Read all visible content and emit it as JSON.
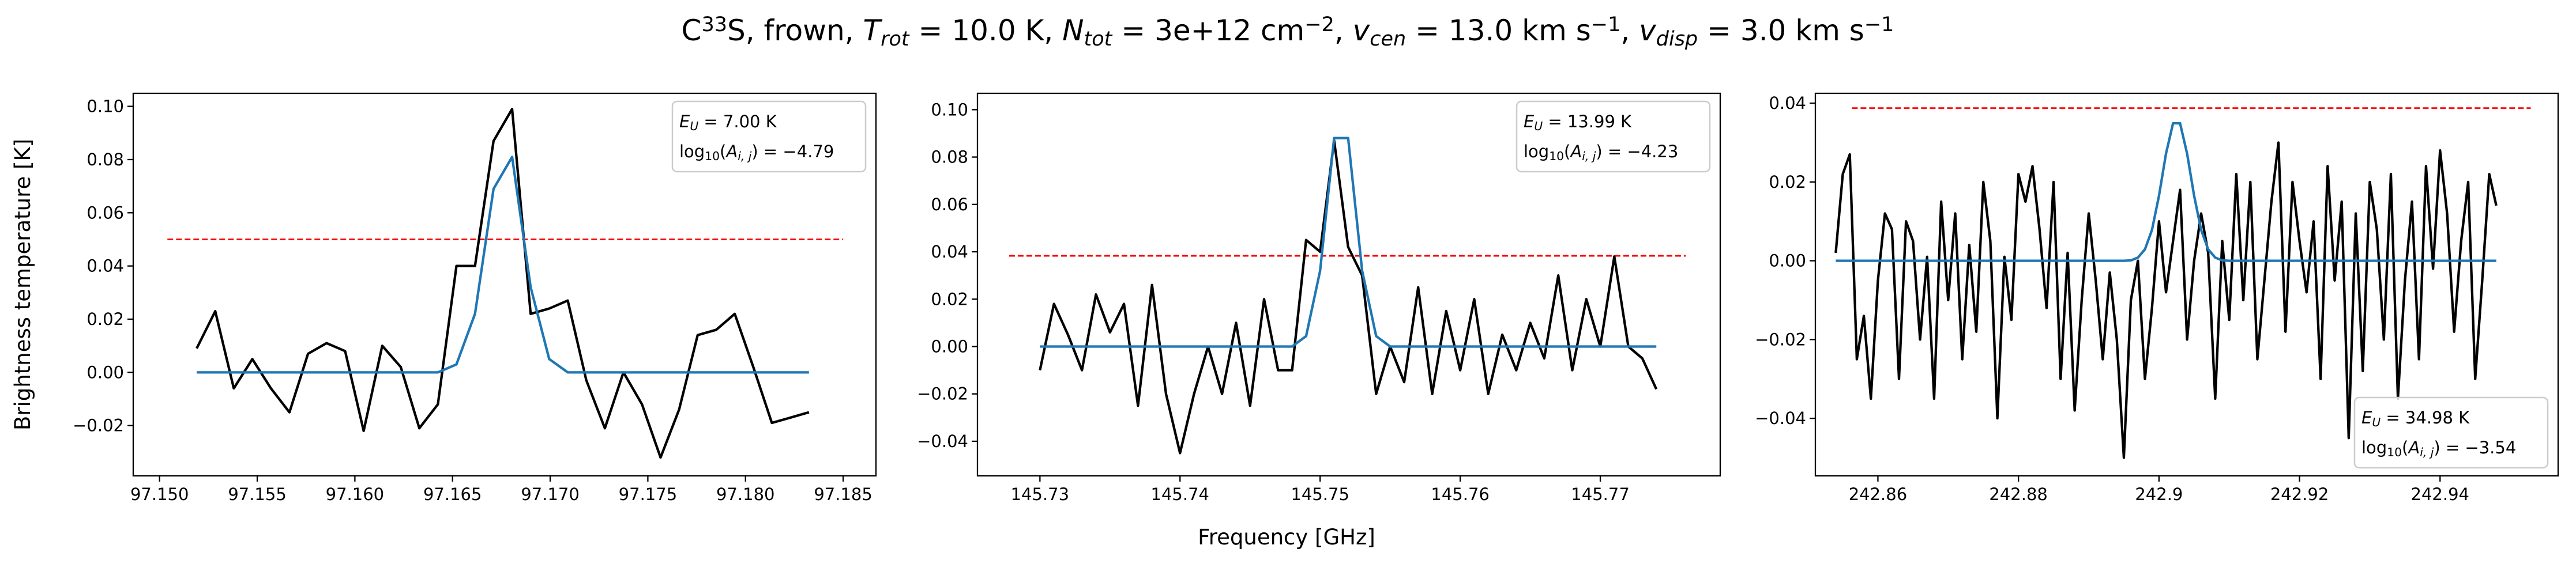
{
  "figure": {
    "title": [
      {
        "text": "C"
      },
      {
        "text": "33",
        "style": "sup"
      },
      {
        "text": "S, frown, "
      },
      {
        "text": "T",
        "style": "italic"
      },
      {
        "text": "rot",
        "style": "sub-italic"
      },
      {
        "text": " =  10.0 K, "
      },
      {
        "text": "N",
        "style": "italic"
      },
      {
        "text": "tot",
        "style": "sub-italic"
      },
      {
        "text": " =  3e+12 cm"
      },
      {
        "text": "−2",
        "style": "sup"
      },
      {
        "text": ", "
      },
      {
        "text": "v",
        "style": "italic"
      },
      {
        "text": "cen",
        "style": "sub-italic"
      },
      {
        "text": " =  13.0 km s"
      },
      {
        "text": "−1",
        "style": "sup"
      },
      {
        "text": ", "
      },
      {
        "text": "v",
        "style": "italic"
      },
      {
        "text": "disp",
        "style": "sub-italic"
      },
      {
        "text": " =  3.0 km s"
      },
      {
        "text": "−1",
        "style": "sup"
      }
    ],
    "xlabel": "Frequency [GHz]",
    "ylabel": "Brightness temperature [K]"
  },
  "chart_data": [
    {
      "type": "line",
      "x": [
        97.1519,
        97.15285,
        97.1538,
        97.15475,
        97.1557,
        97.15665,
        97.1576,
        97.15855,
        97.1595,
        97.16045,
        97.1614,
        97.16235,
        97.1633,
        97.16425,
        97.1652,
        97.16615,
        97.1671,
        97.16805,
        97.169,
        97.16995,
        97.1709,
        97.17185,
        97.1728,
        97.17375,
        97.1747,
        97.17565,
        97.1766,
        97.17755,
        97.1785,
        97.17945,
        97.1804,
        97.18135,
        97.1823,
        97.18325
      ],
      "series": [
        {
          "color": "#000000",
          "values": [
            0.009,
            0.023,
            -0.006,
            0.005,
            -0.006,
            -0.015,
            0.007,
            0.011,
            0.008,
            -0.022,
            0.01,
            0.002,
            -0.021,
            -0.012,
            0.04,
            0.04,
            0.087,
            0.099,
            0.022,
            0.024,
            0.027,
            -0.003,
            -0.021,
            0.0,
            -0.012,
            -0.032,
            -0.014,
            0.014,
            0.016,
            0.022,
            0.002,
            -0.019,
            -0.017,
            -0.015
          ]
        },
        {
          "color": "#1f77b4",
          "values": [
            0,
            0,
            0,
            0,
            0,
            0,
            0,
            0,
            0,
            0,
            0,
            0,
            0,
            0,
            0.003,
            0.022,
            0.069,
            0.081,
            0.032,
            0.005,
            0,
            0,
            0,
            0,
            0,
            0,
            0,
            0,
            0,
            0,
            0,
            0,
            0,
            0
          ]
        }
      ],
      "hline": {
        "y": 0.05,
        "xmin": 97.1504,
        "xmax": 97.185,
        "color": "#ff0000",
        "style": "dashed"
      },
      "xlim": [
        97.14865,
        97.18668
      ],
      "ylim": [
        -0.0389,
        0.1049
      ],
      "xticks": [
        {
          "value": 97.15,
          "label": "97.150"
        },
        {
          "value": 97.155,
          "label": "97.155"
        },
        {
          "value": 97.16,
          "label": "97.160"
        },
        {
          "value": 97.165,
          "label": "97.165"
        },
        {
          "value": 97.17,
          "label": "97.170"
        },
        {
          "value": 97.175,
          "label": "97.175"
        },
        {
          "value": 97.18,
          "label": "97.180"
        },
        {
          "value": 97.185,
          "label": "97.185"
        }
      ],
      "yticks": [
        {
          "value": -0.02,
          "label": "−0.02"
        },
        {
          "value": 0,
          "label": "0.00"
        },
        {
          "value": 0.02,
          "label": "0.02"
        },
        {
          "value": 0.04,
          "label": "0.04"
        },
        {
          "value": 0.06,
          "label": "0.06"
        },
        {
          "value": 0.08,
          "label": "0.08"
        },
        {
          "value": 0.1,
          "label": "0.10"
        }
      ],
      "annotation": {
        "loc": "upper right",
        "lines": [
          [
            {
              "text": "E",
              "style": "italic"
            },
            {
              "text": "U",
              "style": "sub-italic"
            },
            {
              "text": " = 7.00 K"
            }
          ],
          [
            {
              "text": "log"
            },
            {
              "text": "10",
              "style": "sub"
            },
            {
              "text": "("
            },
            {
              "text": "A",
              "style": "italic"
            },
            {
              "text": "i, j",
              "style": "sub-italic"
            },
            {
              "text": ") = −4.79"
            }
          ]
        ]
      }
    },
    {
      "type": "line",
      "x": [
        145.73,
        145.731,
        145.732,
        145.733,
        145.734,
        145.735,
        145.736,
        145.737,
        145.738,
        145.739,
        145.74,
        145.741,
        145.742,
        145.743,
        145.744,
        145.745,
        145.746,
        145.747,
        145.748,
        145.749,
        145.75,
        145.751,
        145.752,
        145.753,
        145.754,
        145.755,
        145.756,
        145.757,
        145.758,
        145.759,
        145.76,
        145.761,
        145.762,
        145.763,
        145.764,
        145.765,
        145.766,
        145.767,
        145.768,
        145.769,
        145.77,
        145.771,
        145.772,
        145.773,
        145.774
      ],
      "series": [
        {
          "color": "#000000",
          "values": [
            -0.01,
            0.018,
            0.005,
            -0.01,
            0.022,
            0.006,
            0.018,
            -0.025,
            0.026,
            -0.02,
            -0.045,
            -0.02,
            0.0,
            -0.02,
            0.01,
            -0.025,
            0.02,
            -0.01,
            -0.01,
            0.045,
            0.04,
            0.087,
            0.042,
            0.03,
            -0.02,
            0.0,
            -0.015,
            0.025,
            -0.02,
            0.015,
            -0.01,
            0.02,
            -0.02,
            0.005,
            -0.01,
            0.01,
            -0.005,
            0.03,
            -0.01,
            0.02,
            0.0,
            0.038,
            0.0,
            -0.005,
            -0.018
          ]
        },
        {
          "color": "#1f77b4",
          "values": [
            0,
            0,
            0,
            0,
            0,
            0,
            0,
            0,
            0,
            0,
            0,
            0,
            0,
            0,
            0,
            0,
            0,
            0,
            0,
            0.0044,
            0.032,
            0.088,
            0.088,
            0.032,
            0.0044,
            0,
            0,
            0,
            0,
            0,
            0,
            0,
            0,
            0,
            0,
            0,
            0,
            0,
            0,
            0,
            0,
            0,
            0,
            0,
            0
          ]
        }
      ],
      "hline": {
        "y": 0.0383,
        "xmin": 145.7278,
        "xmax": 145.7761,
        "color": "#ff0000",
        "style": "dashed"
      },
      "xlim": [
        145.72554,
        145.77856
      ],
      "ylim": [
        -0.0546,
        0.1069
      ],
      "xticks": [
        145.73,
        145.74,
        145.75,
        145.76,
        145.77
      ],
      "yticks": [
        {
          "value": -0.04,
          "label": "−0.04"
        },
        {
          "value": -0.02,
          "label": "−0.02"
        },
        {
          "value": 0,
          "label": "0.00"
        },
        {
          "value": 0.02,
          "label": "0.02"
        },
        {
          "value": 0.04,
          "label": "0.04"
        },
        {
          "value": 0.06,
          "label": "0.06"
        },
        {
          "value": 0.08,
          "label": "0.08"
        },
        {
          "value": 0.1,
          "label": "0.10"
        }
      ],
      "annotation": {
        "loc": "upper right",
        "lines": [
          [
            {
              "text": "E",
              "style": "italic"
            },
            {
              "text": "U",
              "style": "sub-italic"
            },
            {
              "text": " = 13.99 K"
            }
          ],
          [
            {
              "text": "log"
            },
            {
              "text": "10",
              "style": "sub"
            },
            {
              "text": "("
            },
            {
              "text": "A",
              "style": "italic"
            },
            {
              "text": "i, j",
              "style": "sub-italic"
            },
            {
              "text": ") = −4.23"
            }
          ]
        ]
      }
    },
    {
      "type": "line",
      "x": [
        242.854,
        242.855,
        242.856,
        242.857,
        242.858,
        242.859,
        242.86,
        242.861,
        242.862,
        242.863,
        242.864,
        242.865,
        242.866,
        242.867,
        242.868,
        242.869,
        242.87,
        242.871,
        242.872,
        242.873,
        242.874,
        242.875,
        242.876,
        242.877,
        242.878,
        242.879,
        242.88,
        242.881,
        242.882,
        242.883,
        242.884,
        242.885,
        242.886,
        242.887,
        242.888,
        242.889,
        242.89,
        242.891,
        242.892,
        242.893,
        242.894,
        242.895,
        242.896,
        242.897,
        242.898,
        242.899,
        242.9,
        242.901,
        242.902,
        242.903,
        242.904,
        242.905,
        242.906,
        242.907,
        242.908,
        242.909,
        242.91,
        242.911,
        242.912,
        242.913,
        242.914,
        242.915,
        242.916,
        242.917,
        242.918,
        242.919,
        242.92,
        242.921,
        242.922,
        242.923,
        242.924,
        242.925,
        242.926,
        242.927,
        242.928,
        242.929,
        242.93,
        242.931,
        242.932,
        242.933,
        242.934,
        242.935,
        242.936,
        242.937,
        242.938,
        242.939,
        242.94,
        242.941,
        242.942,
        242.943,
        242.944,
        242.945,
        242.946,
        242.947,
        242.948
      ],
      "series": [
        {
          "color": "#000000",
          "values": [
            0.002,
            0.022,
            0.027,
            -0.025,
            -0.014,
            -0.035,
            -0.005,
            0.012,
            0.008,
            -0.03,
            0.01,
            0.005,
            -0.02,
            0.001,
            -0.035,
            0.015,
            -0.01,
            0.012,
            -0.025,
            0.004,
            -0.018,
            0.02,
            0.005,
            -0.04,
            0.001,
            -0.015,
            0.022,
            0.015,
            0.024,
            0.008,
            -0.012,
            0.02,
            -0.03,
            0.002,
            -0.038,
            -0.01,
            0.012,
            -0.005,
            -0.025,
            -0.003,
            -0.02,
            -0.05,
            -0.01,
            0.0,
            -0.03,
            -0.012,
            0.01,
            -0.008,
            0.005,
            0.018,
            -0.02,
            0.0,
            0.012,
            0.002,
            -0.035,
            0.005,
            -0.015,
            0.022,
            -0.01,
            0.02,
            -0.025,
            -0.005,
            0.015,
            0.03,
            -0.018,
            0.02,
            0.005,
            -0.008,
            0.01,
            -0.03,
            0.024,
            -0.005,
            0.015,
            -0.045,
            0.012,
            -0.028,
            0.02,
            0.008,
            -0.02,
            0.022,
            -0.035,
            -0.005,
            0.015,
            -0.025,
            0.024,
            -0.002,
            0.028,
            0.012,
            -0.018,
            0.005,
            0.02,
            -0.03,
            -0.005,
            0.022,
            0.014
          ]
        },
        {
          "color": "#1f77b4",
          "values": [
            0,
            0,
            0,
            0,
            0,
            0,
            0,
            0,
            0,
            0,
            0,
            0,
            0,
            0,
            0,
            0,
            0,
            0,
            0,
            0,
            0,
            0,
            0,
            0,
            0,
            0,
            0,
            0,
            0,
            0,
            0,
            0,
            0,
            0,
            0,
            0,
            0,
            0,
            0,
            0,
            0,
            0,
            0.0001,
            0.0008,
            0.0029,
            0.0078,
            0.0165,
            0.0272,
            0.0349,
            0.0349,
            0.0272,
            0.0165,
            0.0078,
            0.0029,
            0.0008,
            0.0001,
            0,
            0,
            0,
            0,
            0,
            0,
            0,
            0,
            0,
            0,
            0,
            0,
            0,
            0,
            0,
            0,
            0,
            0,
            0,
            0,
            0,
            0,
            0,
            0,
            0,
            0,
            0,
            0,
            0,
            0,
            0,
            0,
            0,
            0,
            0,
            0,
            0,
            0,
            0
          ]
        }
      ],
      "hline": {
        "y": 0.03875,
        "xmin": 242.8563,
        "xmax": 242.9529,
        "color": "#ff0000",
        "style": "dashed"
      },
      "xlim": [
        242.8511,
        242.9568
      ],
      "ylim": [
        -0.0546,
        0.0425
      ],
      "xticks": [
        242.86,
        242.88,
        242.9,
        242.92,
        242.94
      ],
      "yticks": [
        {
          "value": -0.04,
          "label": "−0.04"
        },
        {
          "value": -0.02,
          "label": "−0.02"
        },
        {
          "value": 0,
          "label": "0.00"
        },
        {
          "value": 0.02,
          "label": "0.02"
        },
        {
          "value": 0.04,
          "label": "0.04"
        }
      ],
      "annotation": {
        "loc": "lower right",
        "lines": [
          [
            {
              "text": "E",
              "style": "italic"
            },
            {
              "text": "U",
              "style": "sub-italic"
            },
            {
              "text": " = 34.98 K"
            }
          ],
          [
            {
              "text": "log"
            },
            {
              "text": "10",
              "style": "sub"
            },
            {
              "text": "("
            },
            {
              "text": "A",
              "style": "italic"
            },
            {
              "text": "i, j",
              "style": "sub-italic"
            },
            {
              "text": ") = −3.54"
            }
          ]
        ]
      }
    }
  ]
}
